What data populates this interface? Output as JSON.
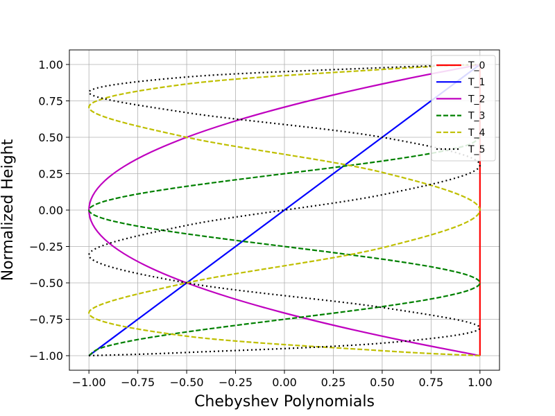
{
  "chart_data": {
    "type": "line",
    "title": "",
    "xlabel": "Chebyshev Polynomials",
    "ylabel": "Normalized Height",
    "xlim": [
      -1.1,
      1.1
    ],
    "ylim": [
      -1.1,
      1.1
    ],
    "xticks": [
      -1.0,
      -0.75,
      -0.5,
      -0.25,
      0.0,
      0.25,
      0.5,
      0.75,
      1.0
    ],
    "xtick_labels": [
      "−1.00",
      "−0.75",
      "−0.50",
      "−0.25",
      "0.00",
      "0.25",
      "0.50",
      "0.75",
      "1.00"
    ],
    "yticks": [
      -1.0,
      -0.75,
      -0.5,
      -0.25,
      0.0,
      0.25,
      0.5,
      0.75,
      1.0
    ],
    "ytick_labels": [
      "−1.00",
      "−0.75",
      "−0.50",
      "−0.25",
      "0.00",
      "0.25",
      "0.50",
      "0.75",
      "1.00"
    ],
    "grid": true,
    "legend_position": "top-right",
    "series": [
      {
        "name": "T_0",
        "color": "#ff0000",
        "style": "solid",
        "x": [
          1.0,
          1.0,
          1.0,
          1.0,
          1.0,
          1.0,
          1.0,
          1.0,
          1.0,
          1.0,
          1.0
        ],
        "y": [
          -1.0,
          -0.8,
          -0.6,
          -0.4,
          -0.2,
          0.0,
          0.2,
          0.4,
          0.6,
          0.8,
          1.0
        ]
      },
      {
        "name": "T_1",
        "color": "#0000ff",
        "style": "solid",
        "x": [
          -1.0,
          -0.8,
          -0.6,
          -0.4,
          -0.2,
          0.0,
          0.2,
          0.4,
          0.6,
          0.8,
          1.0
        ],
        "y": [
          -1.0,
          -0.8,
          -0.6,
          -0.4,
          -0.2,
          0.0,
          0.2,
          0.4,
          0.6,
          0.8,
          1.0
        ]
      },
      {
        "name": "T_2",
        "color": "#bf00bf",
        "style": "solid",
        "x": [
          1.0,
          0.62,
          0.28,
          -0.02,
          -0.28,
          -0.5,
          -0.68,
          -0.82,
          -0.92,
          -0.98,
          -1.0,
          -0.98,
          -0.92,
          -0.82,
          -0.68,
          -0.5,
          -0.28,
          -0.02,
          0.28,
          0.62,
          1.0
        ],
        "y": [
          -1.0,
          -0.9,
          -0.8,
          -0.7,
          -0.6,
          -0.5,
          -0.4,
          -0.3,
          -0.2,
          -0.1,
          0.0,
          0.1,
          0.2,
          0.3,
          0.4,
          0.5,
          0.6,
          0.7,
          0.8,
          0.9,
          1.0
        ]
      },
      {
        "name": "T_3",
        "color": "#008000",
        "style": "dashed",
        "x": [
          -1.0,
          -0.944,
          -0.792,
          -0.568,
          -0.296,
          0.0,
          0.296,
          0.568,
          0.792,
          0.944,
          1.0,
          0.944,
          0.792,
          0.568,
          0.296,
          0.0,
          -0.296,
          -0.568,
          -0.792,
          -0.944,
          -1.0,
          -0.944,
          -0.792,
          -0.568,
          -0.296,
          0.0,
          0.296,
          0.568,
          0.792,
          0.944,
          1.0
        ],
        "y": [
          -1.0,
          -0.95,
          -0.9,
          -0.85,
          -0.8,
          -0.75,
          -0.7,
          -0.65,
          -0.6,
          -0.55,
          -0.5,
          -0.45,
          -0.4,
          -0.35,
          -0.3,
          -0.25,
          -0.2,
          -0.15,
          -0.1,
          -0.05,
          0.0,
          0.05,
          0.1,
          0.15,
          0.2,
          0.25,
          0.3,
          0.35,
          0.4,
          0.45,
          0.5
        ]
      },
      {
        "name": "T_4",
        "color": "#bfbf00",
        "style": "dashed",
        "x": [
          1.0,
          0.5,
          -0.5,
          -1.0,
          -0.5,
          0.5,
          1.0,
          0.5,
          -0.5,
          -1.0,
          -0.5,
          0.5,
          1.0
        ],
        "y": [
          -1.0,
          -0.966,
          -0.866,
          -0.707,
          -0.5,
          -0.259,
          0.0,
          0.259,
          0.5,
          0.707,
          0.866,
          0.966,
          1.0
        ]
      },
      {
        "name": "T_5",
        "color": "#000000",
        "style": "dotted",
        "x": [
          -1.0,
          -0.5,
          0.5,
          1.0,
          0.5,
          -0.5,
          -1.0,
          -0.5,
          0.5,
          1.0,
          0.5,
          -0.5,
          -1.0,
          -0.5,
          0.5,
          1.0
        ],
        "y": [
          -1.0,
          -0.978,
          -0.914,
          -0.809,
          -0.669,
          -0.5,
          -0.309,
          -0.105,
          0.105,
          0.309,
          0.5,
          0.669,
          0.809,
          0.914,
          0.978,
          1.0
        ]
      }
    ]
  }
}
